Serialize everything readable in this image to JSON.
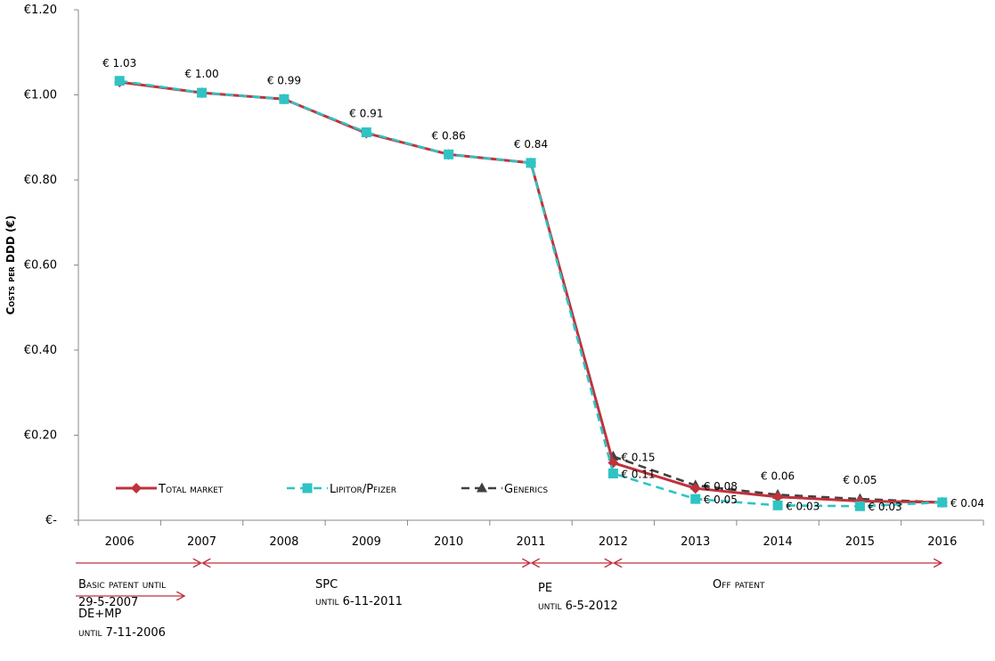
{
  "chart_data": {
    "type": "line",
    "title": "",
    "xlabel": "",
    "ylabel": "Costs per DDD (€)",
    "ylim": [
      0,
      1.2
    ],
    "y_ticks": [
      "€-",
      "€0.20",
      "€0.40",
      "€0.60",
      "€0.80",
      "€1.00",
      "€1.20"
    ],
    "categories": [
      "2006",
      "2007",
      "2008",
      "2009",
      "2010",
      "2011",
      "2012",
      "2013",
      "2014",
      "2015",
      "2016"
    ],
    "series": [
      {
        "name": "Total market",
        "color": "#c0323c",
        "marker": "diamond",
        "dash": false,
        "values": [
          1.03,
          1.005,
          0.99,
          0.91,
          0.86,
          0.84,
          0.135,
          0.075,
          0.055,
          0.045,
          0.042
        ]
      },
      {
        "name": "Lipitor/Pfizer",
        "color": "#2ec4c4",
        "marker": "square",
        "dash": true,
        "values": [
          1.033,
          1.005,
          0.99,
          0.912,
          0.86,
          0.84,
          0.11,
          0.05,
          0.035,
          0.033,
          0.042
        ]
      },
      {
        "name": "Generics",
        "color": "#404040",
        "marker": "triangle",
        "dash": true,
        "values": [
          null,
          null,
          null,
          null,
          null,
          null,
          0.15,
          0.082,
          0.06,
          0.05,
          0.042
        ]
      }
    ],
    "data_labels": [
      {
        "text": "€ 1.03",
        "x": "2006",
        "value": 1.03,
        "pos": "above"
      },
      {
        "text": "€ 1.00",
        "x": "2007",
        "value": 1.005,
        "pos": "above"
      },
      {
        "text": "€ 0.99",
        "x": "2008",
        "value": 0.99,
        "pos": "above"
      },
      {
        "text": "€ 0.91",
        "x": "2009",
        "value": 0.912,
        "pos": "above"
      },
      {
        "text": "€ 0.86",
        "x": "2010",
        "value": 0.86,
        "pos": "above"
      },
      {
        "text": "€ 0.84",
        "x": "2011",
        "value": 0.84,
        "pos": "above"
      },
      {
        "text": "€ 0.15",
        "x": "2012",
        "value": 0.15,
        "pos": "right"
      },
      {
        "text": "€ 0.11",
        "x": "2012",
        "value": 0.11,
        "pos": "right"
      },
      {
        "text": "€ 0.08",
        "x": "2013",
        "value": 0.082,
        "pos": "right"
      },
      {
        "text": "€ 0.05",
        "x": "2013",
        "value": 0.05,
        "pos": "right"
      },
      {
        "text": "€ 0.06",
        "x": "2014",
        "value": 0.06,
        "pos": "above"
      },
      {
        "text": "€ 0.03",
        "x": "2014",
        "value": 0.035,
        "pos": "right"
      },
      {
        "text": "€ 0.05",
        "x": "2015",
        "value": 0.05,
        "pos": "above"
      },
      {
        "text": "€ 0.03",
        "x": "2015",
        "value": 0.033,
        "pos": "right"
      },
      {
        "text": "€ 0.04",
        "x": "2016",
        "value": 0.042,
        "pos": "right"
      }
    ],
    "legend_position": "bottom-left inside",
    "periods": [
      {
        "from": 2006,
        "to": 2007,
        "lines": [
          "Basic patent until",
          "29-5-2007"
        ]
      },
      {
        "from": 2007,
        "to": 2011,
        "lines": [
          "SPC",
          "until 6-11-2011"
        ]
      },
      {
        "from": 2011,
        "to": 2012,
        "lines": [
          "PE",
          "until 6-5-2012"
        ]
      },
      {
        "from": 2012,
        "to": 2016,
        "lines": [
          "Off patent"
        ]
      },
      {
        "from": 2006,
        "to": 2006.8,
        "lines": [
          "DE+MP",
          "until 7-11-2006"
        ]
      }
    ],
    "arrow_color": "#c0323c",
    "grid": false
  }
}
